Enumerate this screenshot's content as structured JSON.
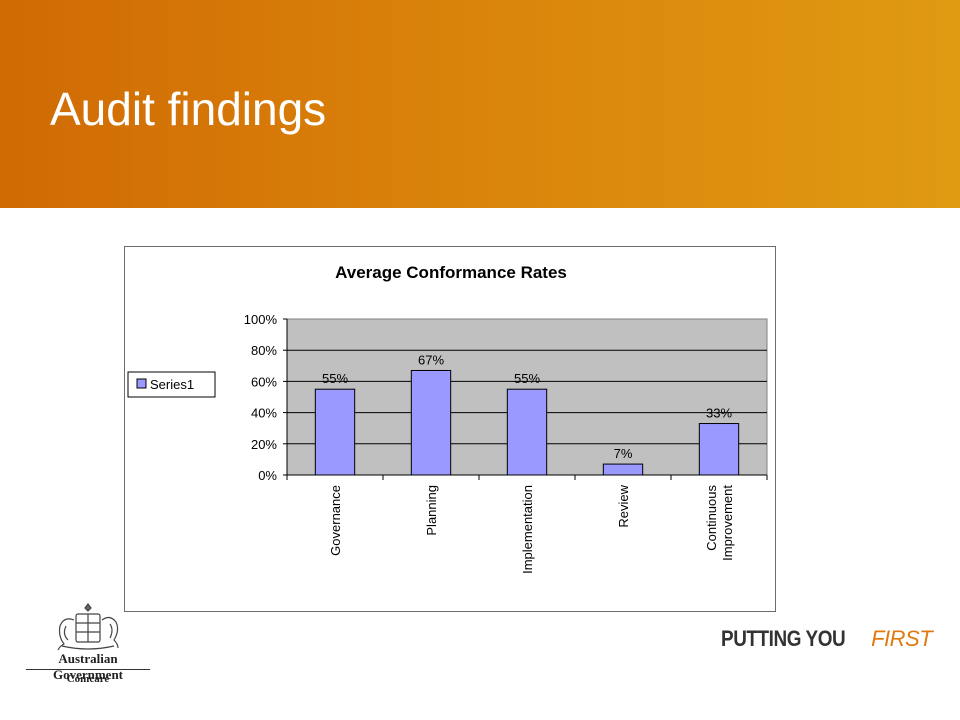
{
  "slide": {
    "title": "Audit findings"
  },
  "chart_data": {
    "type": "bar",
    "title": "Average Conformance Rates",
    "categories": [
      "Governance",
      "Planning",
      "Implementation",
      "Review",
      "Continuous Improvement"
    ],
    "category_lines": [
      [
        "Governance"
      ],
      [
        "Planning"
      ],
      [
        "Implementation"
      ],
      [
        "Review"
      ],
      [
        "Continuous",
        "Improvement"
      ]
    ],
    "series": [
      {
        "name": "Series1",
        "values": [
          55,
          67,
          55,
          7,
          33
        ]
      }
    ],
    "data_labels": [
      "55%",
      "67%",
      "55%",
      "7%",
      "33%"
    ],
    "y_ticks": [
      "0%",
      "20%",
      "40%",
      "60%",
      "80%",
      "100%"
    ],
    "ylim": [
      0,
      100
    ],
    "grid": true,
    "legend_position": "left",
    "colors": {
      "bar": "#9999ff",
      "plot_bg": "#c0c0c0"
    }
  },
  "footer": {
    "government": "Australian Government",
    "agency": "Comcare",
    "tagline_part1": "PUTTING YOU",
    "tagline_part2": "FIRST",
    "crest_icon": "coat-of-arms-icon"
  },
  "colors": {
    "banner_start": "#d06a04",
    "banner_end": "#e09a12",
    "tagline_accent": "#e07a10"
  }
}
